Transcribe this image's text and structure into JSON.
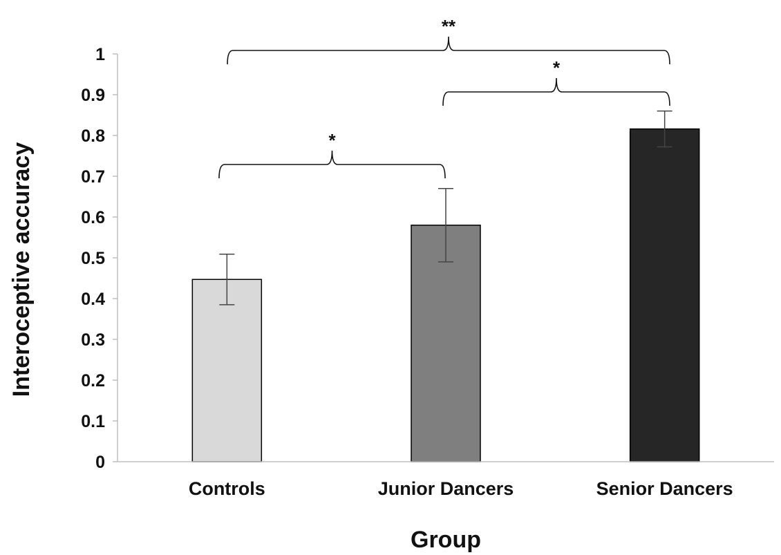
{
  "chart_data": {
    "type": "bar",
    "title": "",
    "xlabel": "Group",
    "ylabel": "Interoceptive accuracy",
    "ylim": [
      0,
      1
    ],
    "yticks": [
      "0",
      "0.1",
      "0.2",
      "0.3",
      "0.4",
      "0.5",
      "0.6",
      "0.7",
      "0.8",
      "0.9",
      "1"
    ],
    "grid": false,
    "legend": "none",
    "categories": [
      "Controls",
      "Junior Dancers",
      "Senior Dancers"
    ],
    "values": [
      0.447,
      0.58,
      0.816
    ],
    "errors": [
      0.062,
      0.09,
      0.044
    ],
    "colors": [
      "#d9d9d9",
      "#7f7f7f",
      "#262626"
    ],
    "significance": [
      {
        "from": 0,
        "to": 1,
        "label": "*"
      },
      {
        "from": 1,
        "to": 2,
        "label": "*"
      },
      {
        "from": 0,
        "to": 2,
        "label": "**"
      }
    ]
  }
}
